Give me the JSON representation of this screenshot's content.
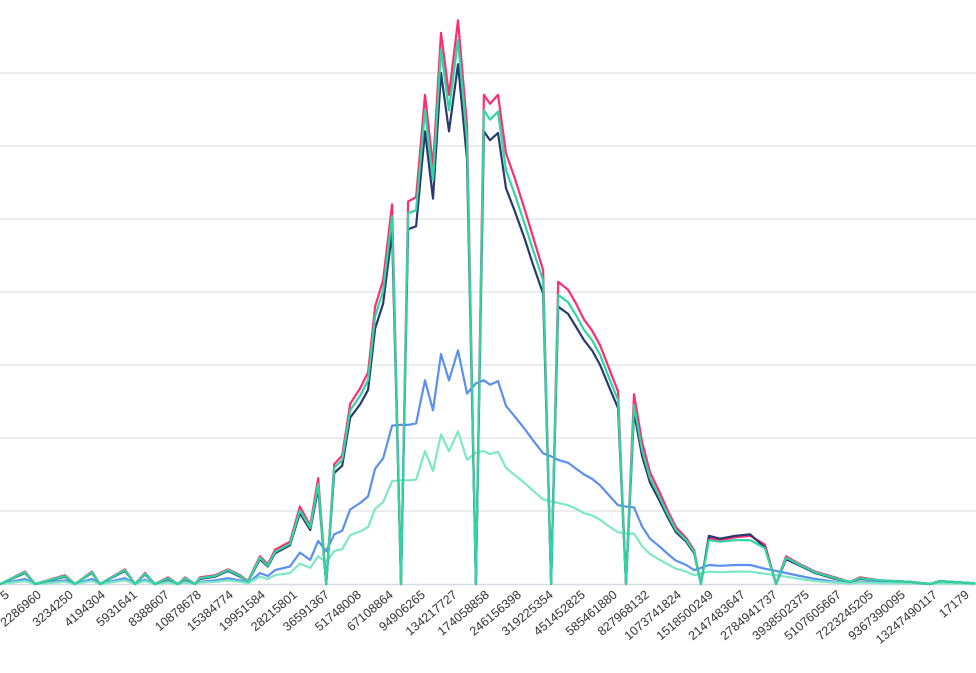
{
  "chart_data": {
    "type": "line",
    "title": "",
    "xlabel": "",
    "ylabel": "",
    "ylim": [
      0,
      7.9
    ],
    "grid": true,
    "legend": "none",
    "x_tick_labels": [
      "5",
      "2286960",
      "3234250",
      "4194304",
      "5931641",
      "8388607",
      "10878678",
      "15384774",
      "19951584",
      "28215801",
      "36591367",
      "51748008",
      "67108864",
      "94906265",
      "134217727",
      "174058858",
      "246156398",
      "319225354",
      "451452825",
      "585461880",
      "827968132",
      "1073741824",
      "1518500249",
      "2147483647",
      "2784941737",
      "3938502375",
      "5107605667",
      "7223245205",
      "9367390095",
      "13247490117",
      "17179"
    ],
    "y_gridlines": [
      1,
      2,
      3,
      4,
      5,
      6,
      7
    ],
    "x": [
      -0.31,
      0.47,
      0.78,
      1.72,
      2.03,
      2.56,
      2.81,
      3.59,
      3.91,
      4.22,
      4.53,
      4.94,
      5.25,
      5.47,
      5.78,
      5.94,
      6.41,
      6.81,
      7.19,
      7.44,
      7.81,
      8.06,
      8.28,
      8.75,
      9.06,
      9.38,
      9.63,
      9.88,
      10.13,
      10.38,
      10.63,
      10.94,
      11.19,
      11.41,
      11.66,
      11.94,
      12.22,
      12.44,
      12.69,
      12.97,
      13.22,
      13.47,
      13.72,
      14.0,
      14.28,
      14.56,
      14.81,
      15.0,
      15.25,
      15.5,
      15.78,
      16.09,
      16.34,
      16.66,
      16.91,
      17.13,
      17.44,
      17.69,
      17.94,
      18.19,
      18.44,
      18.75,
      19.0,
      19.25,
      19.5,
      19.75,
      20.0,
      20.31,
      20.56,
      20.81,
      21.13,
      21.38,
      21.59,
      21.84,
      22.19,
      22.66,
      23.13,
      23.59,
      23.94,
      24.25,
      24.69,
      25.16,
      25.78,
      26.25,
      26.56,
      27.19,
      28.13,
      28.75,
      29.06,
      30.16
    ],
    "series": [
      {
        "name": "series-blue",
        "color": "#5b8ff0",
        "values": [
          0,
          0.07,
          0,
          0.05,
          0,
          0.07,
          0,
          0.08,
          0,
          0.06,
          0,
          0.03,
          0,
          0.03,
          0,
          0.03,
          0.05,
          0.08,
          0.05,
          0.01,
          0.15,
          0.11,
          0.19,
          0.24,
          0.43,
          0.33,
          0.59,
          0.45,
          0.68,
          0.73,
          1.02,
          1.11,
          1.2,
          1.58,
          1.72,
          2.17,
          2.18,
          2.18,
          2.2,
          2.79,
          2.38,
          3.15,
          2.79,
          3.2,
          2.61,
          2.75,
          2.79,
          2.73,
          2.78,
          2.44,
          2.29,
          2.12,
          1.97,
          1.79,
          1.75,
          1.7,
          1.66,
          1.58,
          1.5,
          1.44,
          1.35,
          1.2,
          1.08,
          1.06,
          1.05,
          0.79,
          0.62,
          0.51,
          0.41,
          0.32,
          0.26,
          0.19,
          0.22,
          0.26,
          0.25,
          0.26,
          0.26,
          0.21,
          0.18,
          0.15,
          0.11,
          0.07,
          0.03,
          0.01,
          0.03,
          0.02,
          0.01,
          0,
          0.02,
          0
        ]
      },
      {
        "name": "series-light-teal",
        "color": "#7ee8c4",
        "values": [
          0,
          0.04,
          0,
          0.03,
          0,
          0.04,
          0,
          0.05,
          0,
          0.04,
          0,
          0.02,
          0,
          0.02,
          0,
          0.02,
          0.03,
          0.05,
          0.03,
          0.01,
          0.1,
          0.07,
          0.12,
          0.15,
          0.28,
          0.22,
          0.38,
          0.3,
          0.45,
          0.48,
          0.67,
          0.72,
          0.78,
          1.03,
          1.12,
          1.41,
          1.42,
          1.42,
          1.43,
          1.82,
          1.55,
          2.05,
          1.82,
          2.09,
          1.7,
          1.8,
          1.82,
          1.78,
          1.81,
          1.59,
          1.49,
          1.38,
          1.28,
          1.16,
          1.13,
          1.11,
          1.08,
          1.03,
          0.97,
          0.94,
          0.88,
          0.78,
          0.71,
          0.69,
          0.69,
          0.52,
          0.41,
          0.33,
          0.27,
          0.21,
          0.17,
          0.12,
          0.14,
          0.17,
          0.16,
          0.17,
          0.17,
          0.14,
          0.12,
          0.1,
          0.07,
          0.04,
          0.02,
          0.01,
          0.02,
          0.01,
          0.01,
          0,
          0.01,
          0
        ]
      },
      {
        "name": "series-red",
        "color": "#ff2d6f",
        "values": [
          0,
          0.17,
          0,
          0.12,
          0,
          0.17,
          0,
          0.2,
          0,
          0.15,
          0,
          0.09,
          0,
          0.09,
          0,
          0.09,
          0.12,
          0.2,
          0.12,
          0.04,
          0.38,
          0.27,
          0.47,
          0.58,
          1.06,
          0.8,
          1.45,
          0,
          1.64,
          1.76,
          2.47,
          2.68,
          2.9,
          3.8,
          4.16,
          5.2,
          0,
          5.24,
          5.3,
          6.7,
          5.72,
          7.55,
          6.7,
          7.72,
          6.28,
          0,
          6.7,
          6.58,
          6.7,
          5.9,
          5.55,
          5.12,
          4.76,
          4.3,
          0,
          4.14,
          4.03,
          3.84,
          3.62,
          3.47,
          3.27,
          2.92,
          2.64,
          0,
          2.6,
          1.95,
          1.53,
          1.25,
          1.0,
          0.78,
          0.63,
          0.46,
          0,
          0.63,
          0.6,
          0.64,
          0.66,
          0.54,
          0,
          0.38,
          0.27,
          0.17,
          0.09,
          0.03,
          0.09,
          0.05,
          0.03,
          0,
          0.04,
          0.01
        ]
      },
      {
        "name": "series-navy",
        "color": "#2a3a6e",
        "values": [
          0,
          0.15,
          0,
          0.1,
          0,
          0.15,
          0,
          0.18,
          0,
          0.13,
          0,
          0.07,
          0,
          0.07,
          0,
          0.07,
          0.1,
          0.18,
          0.1,
          0.03,
          0.34,
          0.24,
          0.42,
          0.53,
          0.97,
          0.74,
          1.31,
          0,
          1.52,
          1.62,
          2.28,
          2.46,
          2.66,
          3.5,
          3.84,
          4.82,
          0,
          4.86,
          4.9,
          6.2,
          5.28,
          7.0,
          6.2,
          7.12,
          5.82,
          0,
          6.2,
          6.08,
          6.18,
          5.42,
          5.1,
          4.72,
          4.38,
          3.98,
          0,
          3.8,
          3.7,
          3.52,
          3.34,
          3.2,
          3.0,
          2.67,
          2.41,
          0,
          2.35,
          1.76,
          1.39,
          1.13,
          0.91,
          0.71,
          0.58,
          0.42,
          0,
          0.66,
          0.62,
          0.66,
          0.68,
          0.5,
          0,
          0.34,
          0.25,
          0.15,
          0.07,
          0.03,
          0.07,
          0.05,
          0.03,
          0,
          0.04,
          0.01
        ]
      },
      {
        "name": "series-green",
        "color": "#2fd6a2",
        "values": [
          0,
          0.16,
          0,
          0.11,
          0,
          0.16,
          0,
          0.19,
          0,
          0.14,
          0,
          0.08,
          0,
          0.08,
          0,
          0.08,
          0.11,
          0.19,
          0.11,
          0.03,
          0.36,
          0.25,
          0.44,
          0.55,
          1.01,
          0.77,
          1.37,
          0,
          1.59,
          1.7,
          2.38,
          2.58,
          2.79,
          3.67,
          4.01,
          5.04,
          0,
          5.08,
          5.12,
          6.49,
          5.53,
          7.32,
          6.49,
          7.45,
          6.08,
          0,
          6.49,
          6.36,
          6.47,
          5.67,
          5.33,
          4.92,
          4.58,
          4.16,
          0,
          3.96,
          3.86,
          3.68,
          3.48,
          3.34,
          3.14,
          2.79,
          2.52,
          0,
          2.45,
          1.84,
          1.45,
          1.18,
          0.95,
          0.74,
          0.6,
          0.44,
          0,
          0.6,
          0.58,
          0.6,
          0.6,
          0.49,
          0,
          0.36,
          0.26,
          0.16,
          0.08,
          0.03,
          0.08,
          0.05,
          0.03,
          0,
          0.04,
          0.01
        ]
      }
    ]
  }
}
